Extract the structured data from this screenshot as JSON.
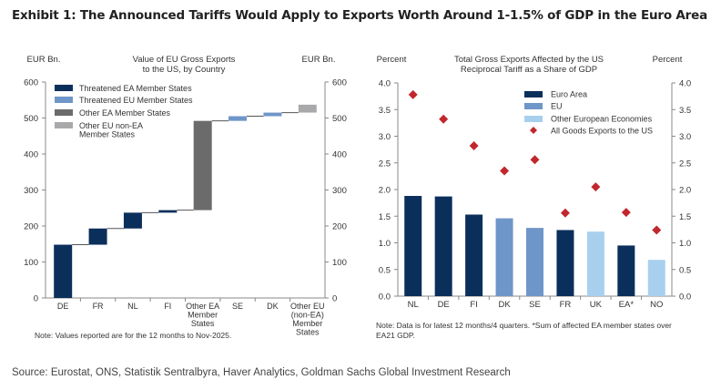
{
  "exhibit_title": "Exhibit 1: The Announced Tariffs Would Apply to Exports Worth Around 1-1.5% of GDP in the Euro Area",
  "source": "Source: Eurostat, ONS, Statistik Sentralbyra, Haver Analytics, Goldman Sachs Global Investment Research",
  "chart_data": [
    {
      "type": "waterfall",
      "title": [
        "Value of EU Gross Exports",
        "to the US, by Country"
      ],
      "ylabel_left": "EUR Bn.",
      "ylabel_right": "EUR Bn.",
      "ylim": [
        0,
        600
      ],
      "yticks": [
        0,
        100,
        200,
        300,
        400,
        500,
        600
      ],
      "categories": [
        "DE",
        "FR",
        "NL",
        "FI",
        "Other EA\nMember\nStates",
        "SE",
        "DK",
        "Other EU\n(non-EA)\nMember\nStates"
      ],
      "ranges": [
        [
          0,
          148
        ],
        [
          148,
          193
        ],
        [
          193,
          237
        ],
        [
          237,
          244
        ],
        [
          244,
          492
        ],
        [
          492,
          505
        ],
        [
          505,
          515
        ],
        [
          515,
          537
        ]
      ],
      "groups": [
        0,
        0,
        0,
        0,
        2,
        1,
        1,
        3
      ],
      "legend": [
        {
          "name": "Threatened EA Member States",
          "color": "#0b2f5b"
        },
        {
          "name": "Threatened EU Member States",
          "color": "#6f96c8"
        },
        {
          "name": "Other EA Member States",
          "color": "#6b6b6b"
        },
        {
          "name": "Other EU non-EA\nMember States",
          "color": "#a9a9ab"
        }
      ],
      "legend_position": "top-left",
      "note": "Note: Values reported are for the 12 months to Nov-2025."
    },
    {
      "type": "bar+scatter",
      "title": [
        "Total Gross Exports Affected by the US",
        "Reciprocal Tariff as a Share of GDP"
      ],
      "ylabel_left": "Percent",
      "ylabel_right": "Percent",
      "ylim": [
        0,
        4.0
      ],
      "yticks": [
        "0.0",
        "0.5",
        "1.0",
        "1.5",
        "2.0",
        "2.5",
        "3.0",
        "3.5",
        "4.0"
      ],
      "categories": [
        "NL",
        "DE",
        "FI",
        "DK",
        "SE",
        "FR",
        "UK",
        "EA*",
        "NO"
      ],
      "bars": [
        1.88,
        1.87,
        1.53,
        1.46,
        1.28,
        1.24,
        1.21,
        0.95,
        0.68
      ],
      "bar_groups": [
        0,
        0,
        0,
        1,
        1,
        0,
        2,
        0,
        2
      ],
      "diamonds": [
        3.78,
        3.32,
        2.82,
        2.35,
        2.56,
        1.56,
        2.05,
        1.57,
        1.24
      ],
      "legend": [
        {
          "name": "Euro Area",
          "color": "#0b2f5b"
        },
        {
          "name": "EU",
          "color": "#6f96c8"
        },
        {
          "name": "Other European Economies",
          "color": "#a8d0ee"
        },
        {
          "name": "All Goods Exports to the US",
          "color": "#c1272d",
          "marker": "diamond"
        }
      ],
      "legend_position": "top-right",
      "note": [
        "Note: Data is for latest 12 months/4 quarters. *Sum of affected EA member states over",
        "EA21 GDP."
      ]
    }
  ]
}
